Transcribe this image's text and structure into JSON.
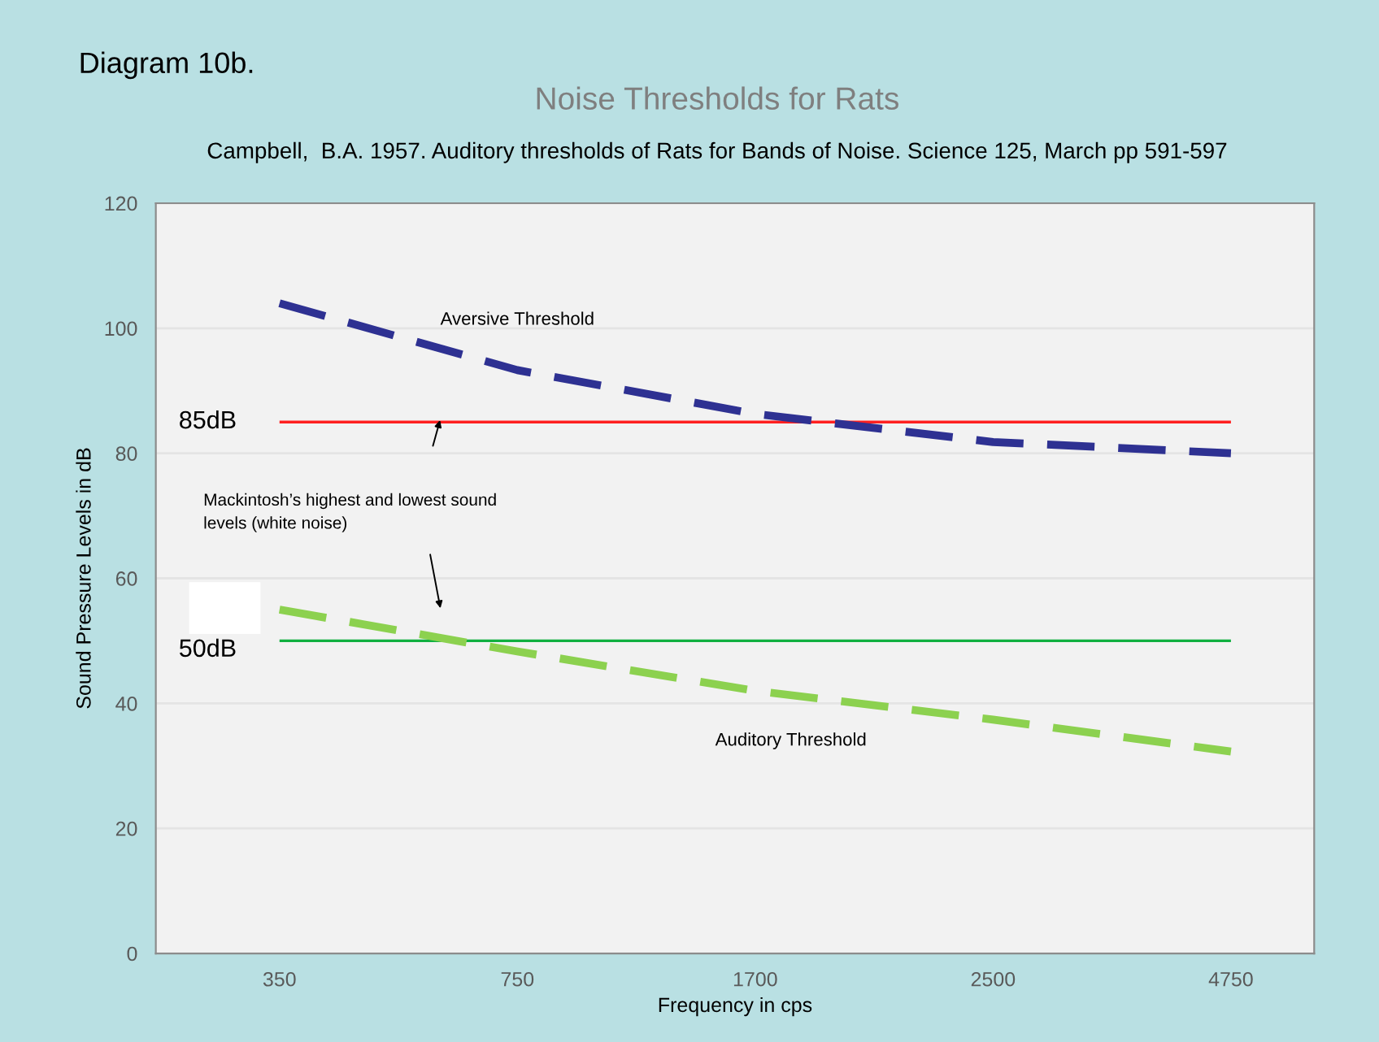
{
  "chart_data": {
    "type": "line",
    "title": "Noise Thresholds for Rats",
    "subtitle": "Campbell,  B.A. 1957. Auditory thresholds of Rats for Bands of Noise. Science 125, March pp 591-597",
    "xlabel": "Frequency in cps",
    "ylabel": "Sound Pressure Levels in dB",
    "categories": [
      "350",
      "750",
      "1700",
      "2500",
      "4750"
    ],
    "series": [
      {
        "name": "Aversive Threshold",
        "color": "#2e3192",
        "values": [
          104,
          93.3,
          86.3,
          81.8,
          80
        ]
      },
      {
        "name": "Auditory Threshold",
        "color": "#8cd14f",
        "values": [
          55,
          48.3,
          42,
          37.4,
          32.3
        ]
      }
    ],
    "ref_lines": [
      {
        "axis": "y",
        "value": 85,
        "label": "85dB",
        "color": "#ff2020"
      },
      {
        "axis": "y",
        "value": 50,
        "label": "50dB",
        "color": "#10b040"
      }
    ],
    "annotations": [
      "Diagram 10b.",
      "Mackintosh’s highest and lowest sound\nlevels (white noise)"
    ],
    "ylim": [
      0,
      120
    ],
    "yticks": [
      0,
      20,
      40,
      60,
      80,
      100,
      120
    ],
    "grid": "y",
    "legend": false,
    "marker": "none",
    "line_style": "dashed"
  }
}
